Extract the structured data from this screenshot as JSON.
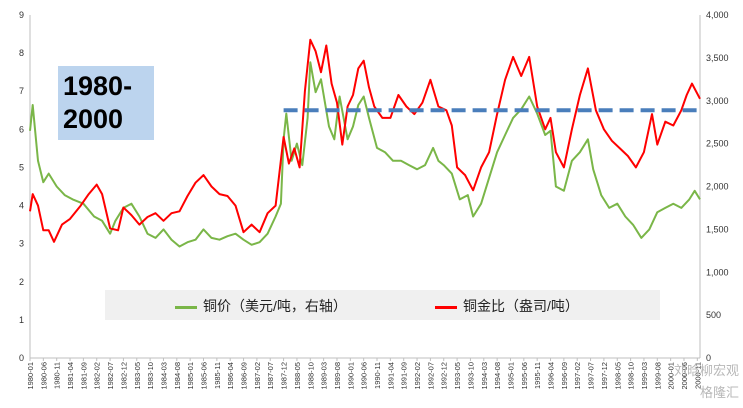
{
  "annotation": {
    "period": "1980-\n2000"
  },
  "legend": {
    "copper_price": "铜价（美元/吨，右轴）",
    "copper_gold_ratio": "铜金比（盎司/吨）"
  },
  "watermark": {
    "line1": "刘晗柳宏观",
    "line2": "格隆汇"
  },
  "chart_data": {
    "type": "line",
    "x_start": "1980-01",
    "x_end": "2000-12",
    "x_tick_labels": [
      "1980-01",
      "1980-06",
      "1980-11",
      "1981-04",
      "1981-09",
      "1982-02",
      "1982-07",
      "1982-12",
      "1983-05",
      "1983-10",
      "1984-03",
      "1984-08",
      "1985-01",
      "1985-06",
      "1985-11",
      "1986-04",
      "1986-09",
      "1987-02",
      "1987-07",
      "1987-12",
      "1988-05",
      "1988-10",
      "1989-03",
      "1989-08",
      "1990-01",
      "1990-06",
      "1990-11",
      "1991-04",
      "1991-09",
      "1992-02",
      "1992-07",
      "1992-12",
      "1993-05",
      "1993-10",
      "1994-03",
      "1994-08",
      "1995-01",
      "1995-06",
      "1995-11",
      "1996-04",
      "1996-09",
      "1997-02",
      "1997-07",
      "1997-12",
      "1998-05",
      "1998-10",
      "1999-03",
      "1999-08",
      "2000-01",
      "2000-06",
      "2000-11"
    ],
    "y_left": {
      "min": 0,
      "max": 9,
      "ticks": [
        "0",
        "1",
        "2",
        "3",
        "4",
        "5",
        "6",
        "7",
        "8",
        "9"
      ]
    },
    "y_right": {
      "min": 0,
      "max": 4000,
      "ticks": [
        "0",
        "500",
        "1,000",
        "1,500",
        "2,000",
        "2,500",
        "3,000",
        "3,500",
        "4,000"
      ]
    },
    "series": [
      {
        "name": "铜价（美元/吨，右轴）",
        "axis": "right",
        "color": "#7ab648",
        "points": [
          [
            "1980-01",
            2650
          ],
          [
            "1980-02",
            2950
          ],
          [
            "1980-04",
            2300
          ],
          [
            "1980-06",
            2050
          ],
          [
            "1980-08",
            2150
          ],
          [
            "1980-11",
            2000
          ],
          [
            "1981-02",
            1900
          ],
          [
            "1981-05",
            1850
          ],
          [
            "1981-09",
            1800
          ],
          [
            "1982-01",
            1650
          ],
          [
            "1982-04",
            1600
          ],
          [
            "1982-07",
            1450
          ],
          [
            "1982-09",
            1600
          ],
          [
            "1982-12",
            1750
          ],
          [
            "1983-03",
            1800
          ],
          [
            "1983-06",
            1650
          ],
          [
            "1983-09",
            1450
          ],
          [
            "1983-12",
            1400
          ],
          [
            "1984-03",
            1500
          ],
          [
            "1984-06",
            1380
          ],
          [
            "1984-09",
            1300
          ],
          [
            "1984-12",
            1350
          ],
          [
            "1985-03",
            1380
          ],
          [
            "1985-06",
            1500
          ],
          [
            "1985-09",
            1400
          ],
          [
            "1985-12",
            1380
          ],
          [
            "1986-03",
            1420
          ],
          [
            "1986-06",
            1450
          ],
          [
            "1986-09",
            1380
          ],
          [
            "1986-12",
            1320
          ],
          [
            "1987-03",
            1350
          ],
          [
            "1987-06",
            1450
          ],
          [
            "1987-09",
            1650
          ],
          [
            "1987-11",
            1800
          ],
          [
            "1987-12",
            2550
          ],
          [
            "1988-01",
            2850
          ],
          [
            "1988-03",
            2300
          ],
          [
            "1988-05",
            2500
          ],
          [
            "1988-07",
            2250
          ],
          [
            "1988-09",
            2800
          ],
          [
            "1988-10",
            3450
          ],
          [
            "1988-12",
            3100
          ],
          [
            "1989-02",
            3250
          ],
          [
            "1989-05",
            2700
          ],
          [
            "1989-07",
            2550
          ],
          [
            "1989-09",
            3050
          ],
          [
            "1989-12",
            2550
          ],
          [
            "1990-02",
            2700
          ],
          [
            "1990-04",
            2950
          ],
          [
            "1990-06",
            3050
          ],
          [
            "1990-08",
            2800
          ],
          [
            "1990-11",
            2450
          ],
          [
            "1991-02",
            2400
          ],
          [
            "1991-05",
            2300
          ],
          [
            "1991-08",
            2300
          ],
          [
            "1991-11",
            2250
          ],
          [
            "1992-02",
            2200
          ],
          [
            "1992-05",
            2250
          ],
          [
            "1992-08",
            2450
          ],
          [
            "1992-10",
            2300
          ],
          [
            "1992-12",
            2250
          ],
          [
            "1993-03",
            2150
          ],
          [
            "1993-06",
            1850
          ],
          [
            "1993-09",
            1900
          ],
          [
            "1993-11",
            1650
          ],
          [
            "1994-02",
            1800
          ],
          [
            "1994-05",
            2100
          ],
          [
            "1994-08",
            2400
          ],
          [
            "1994-11",
            2600
          ],
          [
            "1995-02",
            2800
          ],
          [
            "1995-05",
            2900
          ],
          [
            "1995-08",
            3050
          ],
          [
            "1995-11",
            2850
          ],
          [
            "1996-02",
            2600
          ],
          [
            "1996-04",
            2650
          ],
          [
            "1996-06",
            2000
          ],
          [
            "1996-09",
            1950
          ],
          [
            "1996-12",
            2300
          ],
          [
            "1997-03",
            2400
          ],
          [
            "1997-06",
            2550
          ],
          [
            "1997-08",
            2200
          ],
          [
            "1997-11",
            1900
          ],
          [
            "1998-02",
            1750
          ],
          [
            "1998-05",
            1800
          ],
          [
            "1998-08",
            1650
          ],
          [
            "1998-11",
            1550
          ],
          [
            "1999-02",
            1400
          ],
          [
            "1999-05",
            1500
          ],
          [
            "1999-08",
            1700
          ],
          [
            "1999-11",
            1750
          ],
          [
            "2000-02",
            1800
          ],
          [
            "2000-05",
            1750
          ],
          [
            "2000-08",
            1850
          ],
          [
            "2000-10",
            1950
          ],
          [
            "2000-12",
            1850
          ]
        ]
      },
      {
        "name": "铜金比（盎司/吨）",
        "axis": "left",
        "color": "#ff0000",
        "points": [
          [
            "1980-01",
            3.85
          ],
          [
            "1980-02",
            4.3
          ],
          [
            "1980-04",
            4.0
          ],
          [
            "1980-06",
            3.35
          ],
          [
            "1980-08",
            3.35
          ],
          [
            "1980-10",
            3.05
          ],
          [
            "1981-01",
            3.5
          ],
          [
            "1981-04",
            3.65
          ],
          [
            "1981-08",
            4.0
          ],
          [
            "1981-11",
            4.3
          ],
          [
            "1982-02",
            4.55
          ],
          [
            "1982-04",
            4.3
          ],
          [
            "1982-07",
            3.4
          ],
          [
            "1982-10",
            3.35
          ],
          [
            "1982-12",
            3.95
          ],
          [
            "1983-03",
            3.75
          ],
          [
            "1983-06",
            3.5
          ],
          [
            "1983-09",
            3.7
          ],
          [
            "1983-12",
            3.8
          ],
          [
            "1984-03",
            3.6
          ],
          [
            "1984-06",
            3.8
          ],
          [
            "1984-09",
            3.85
          ],
          [
            "1984-12",
            4.25
          ],
          [
            "1985-03",
            4.6
          ],
          [
            "1985-06",
            4.8
          ],
          [
            "1985-09",
            4.5
          ],
          [
            "1985-12",
            4.3
          ],
          [
            "1986-03",
            4.25
          ],
          [
            "1986-06",
            4.0
          ],
          [
            "1986-09",
            3.3
          ],
          [
            "1986-12",
            3.5
          ],
          [
            "1987-03",
            3.3
          ],
          [
            "1987-06",
            3.8
          ],
          [
            "1987-09",
            4.0
          ],
          [
            "1987-12",
            5.8
          ],
          [
            "1988-02",
            5.1
          ],
          [
            "1988-04",
            5.5
          ],
          [
            "1988-06",
            5.0
          ],
          [
            "1988-08",
            7.0
          ],
          [
            "1988-10",
            8.35
          ],
          [
            "1988-12",
            8.05
          ],
          [
            "1989-02",
            7.5
          ],
          [
            "1989-04",
            8.2
          ],
          [
            "1989-06",
            7.2
          ],
          [
            "1989-08",
            6.7
          ],
          [
            "1989-10",
            5.6
          ],
          [
            "1989-12",
            6.6
          ],
          [
            "1990-02",
            6.9
          ],
          [
            "1990-04",
            7.6
          ],
          [
            "1990-06",
            7.8
          ],
          [
            "1990-08",
            7.1
          ],
          [
            "1990-10",
            6.6
          ],
          [
            "1991-01",
            6.3
          ],
          [
            "1991-04",
            6.3
          ],
          [
            "1991-07",
            6.9
          ],
          [
            "1991-10",
            6.6
          ],
          [
            "1992-01",
            6.4
          ],
          [
            "1992-04",
            6.7
          ],
          [
            "1992-07",
            7.3
          ],
          [
            "1992-10",
            6.6
          ],
          [
            "1993-01",
            6.5
          ],
          [
            "1993-03",
            6.1
          ],
          [
            "1993-05",
            5.0
          ],
          [
            "1993-08",
            4.8
          ],
          [
            "1993-11",
            4.4
          ],
          [
            "1994-02",
            5.0
          ],
          [
            "1994-05",
            5.4
          ],
          [
            "1994-08",
            6.4
          ],
          [
            "1994-11",
            7.3
          ],
          [
            "1995-02",
            7.9
          ],
          [
            "1995-05",
            7.4
          ],
          [
            "1995-08",
            7.9
          ],
          [
            "1995-11",
            6.6
          ],
          [
            "1996-02",
            6.0
          ],
          [
            "1996-04",
            6.3
          ],
          [
            "1996-06",
            5.4
          ],
          [
            "1996-09",
            5.0
          ],
          [
            "1996-12",
            6.0
          ],
          [
            "1997-03",
            6.9
          ],
          [
            "1997-06",
            7.6
          ],
          [
            "1997-09",
            6.5
          ],
          [
            "1997-12",
            6.0
          ],
          [
            "1998-03",
            5.7
          ],
          [
            "1998-06",
            5.5
          ],
          [
            "1998-09",
            5.3
          ],
          [
            "1998-12",
            5.0
          ],
          [
            "1999-03",
            5.4
          ],
          [
            "1999-06",
            6.4
          ],
          [
            "1999-08",
            5.6
          ],
          [
            "1999-11",
            6.2
          ],
          [
            "2000-02",
            6.1
          ],
          [
            "2000-05",
            6.5
          ],
          [
            "2000-07",
            6.9
          ],
          [
            "2000-09",
            7.2
          ],
          [
            "2000-12",
            6.8
          ]
        ]
      },
      {
        "name": "",
        "axis": "left",
        "color": "#4a7ebb",
        "style": "dashed",
        "points": [
          [
            "1987-12",
            6.5
          ],
          [
            "2000-12",
            6.5
          ]
        ]
      }
    ],
    "grid": false,
    "legend_position": "bottom"
  }
}
